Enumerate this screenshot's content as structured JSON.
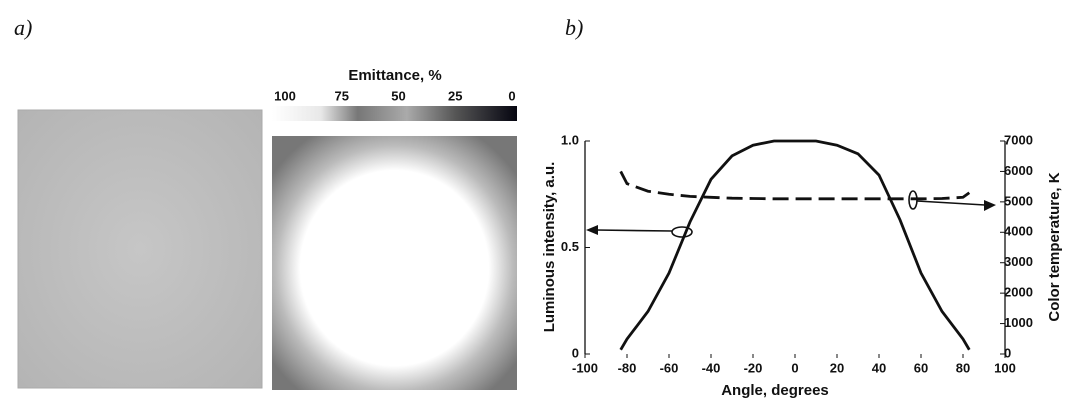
{
  "panels": {
    "a": "a)",
    "b": "b)"
  },
  "colorbar": {
    "title": "Emittance, %",
    "ticks": [
      100,
      75,
      50,
      25,
      0
    ]
  },
  "chart_data": {
    "type": "line",
    "x_label": "Angle, degrees",
    "y_label": "Luminous intensity, a.u.",
    "y2_label": "Color temperature, K",
    "x": [
      -83,
      -80,
      -70,
      -60,
      -50,
      -40,
      -30,
      -20,
      -10,
      0,
      10,
      20,
      30,
      40,
      50,
      60,
      70,
      80,
      83
    ],
    "series": [
      {
        "color": "#111111",
        "dashed": false,
        "values": [
          0.02,
          0.07,
          0.2,
          0.38,
          0.62,
          0.82,
          0.93,
          0.98,
          1.0,
          1.0,
          1.0,
          0.98,
          0.94,
          0.84,
          0.63,
          0.38,
          0.2,
          0.07,
          0.02
        ]
      },
      {
        "color": "#111111",
        "dashed": true,
        "axis": "y2",
        "values": [
          6000,
          5600,
          5350,
          5250,
          5180,
          5150,
          5120,
          5110,
          5100,
          5100,
          5100,
          5100,
          5100,
          5100,
          5100,
          5100,
          5110,
          5150,
          5300
        ]
      }
    ],
    "xlim": [
      -100,
      100
    ],
    "xticks": [
      -100,
      -80,
      -60,
      -40,
      -20,
      0,
      20,
      40,
      60,
      80,
      100
    ],
    "ylim": [
      0,
      1
    ],
    "yticks": [
      0,
      0.5,
      {
        "value": 1,
        "label": "1.0"
      }
    ],
    "y2lim": [
      0,
      7000
    ],
    "y2ticks": [
      0,
      1000,
      2000,
      3000,
      4000,
      5000,
      6000,
      7000
    ]
  }
}
